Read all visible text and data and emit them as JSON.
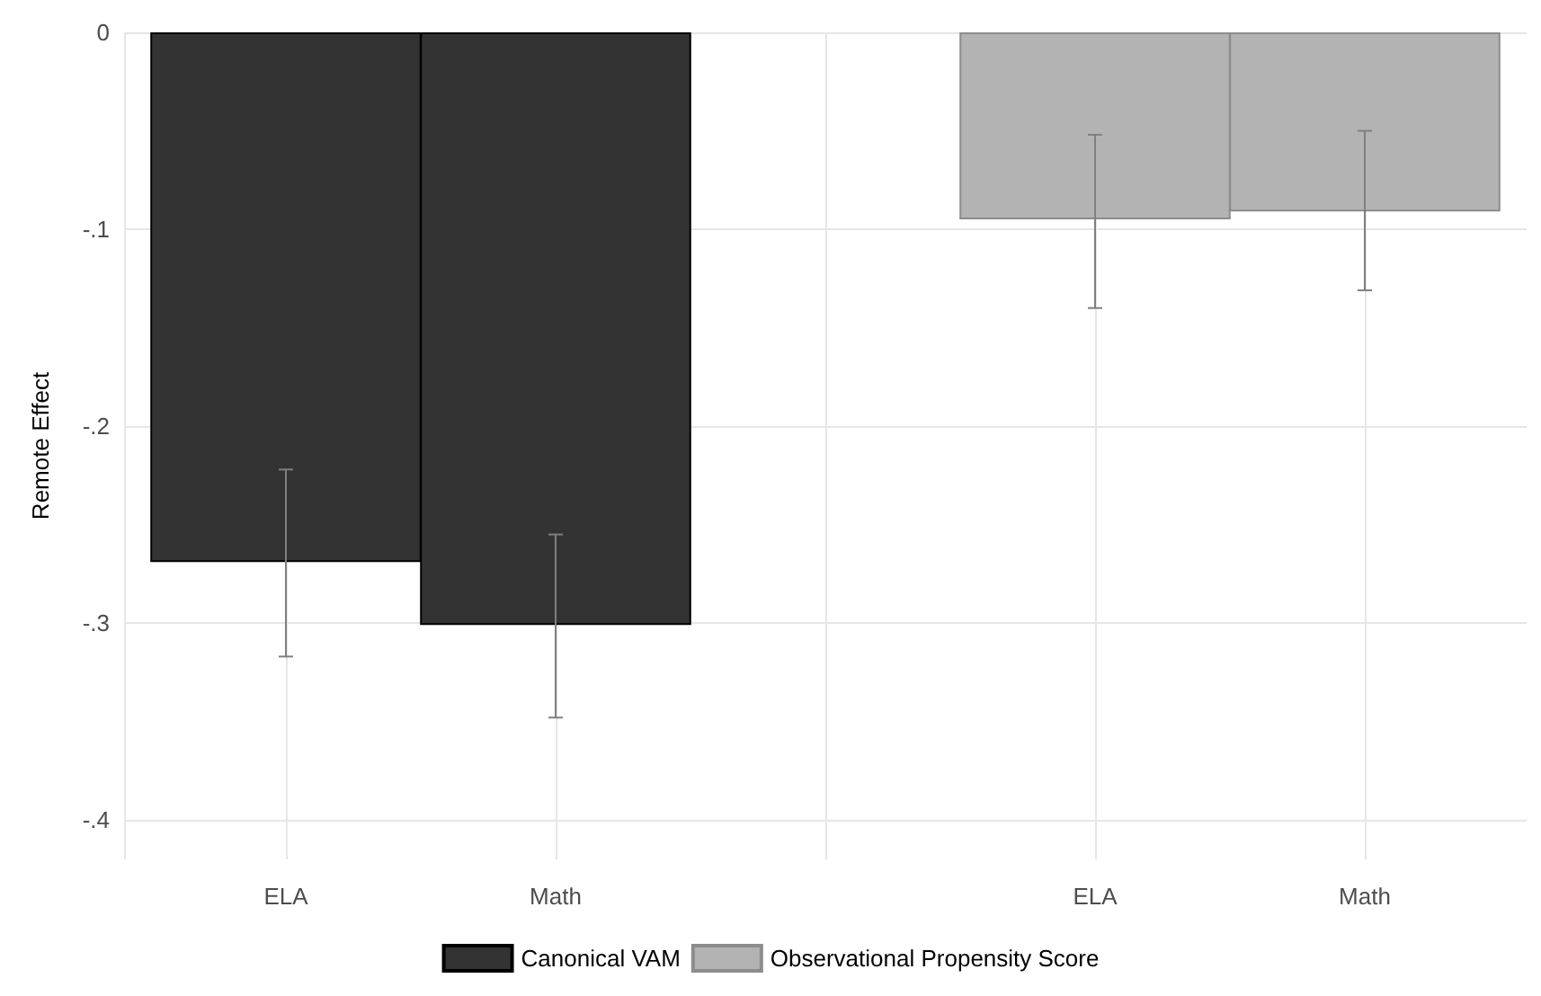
{
  "chart_data": {
    "type": "bar",
    "ylabel": "Remote Effect",
    "categories": [
      "ELA",
      "Math",
      null,
      "ELA",
      "Math"
    ],
    "series": [
      {
        "name": "Canonical VAM",
        "color": "#333333",
        "values": [
          -0.269,
          -0.301,
          null,
          null,
          null
        ],
        "errors": [
          [
            -0.317,
            -0.222
          ],
          [
            -0.348,
            -0.255
          ],
          null,
          null,
          null
        ]
      },
      {
        "name": "Observational Propensity Score",
        "color": "#b3b3b3",
        "values": [
          null,
          null,
          null,
          -0.095,
          -0.091
        ],
        "errors": [
          null,
          null,
          null,
          [
            -0.14,
            -0.052
          ],
          [
            -0.131,
            -0.05
          ]
        ]
      }
    ],
    "ylim": [
      -0.42,
      0
    ],
    "yticks": [
      {
        "value": -0.4,
        "label": "-.4"
      },
      {
        "value": -0.3,
        "label": "-.3"
      },
      {
        "value": -0.2,
        "label": "-.2"
      },
      {
        "value": -0.1,
        "label": "-.1"
      },
      0
    ],
    "grid": true,
    "legend": "bottom"
  }
}
